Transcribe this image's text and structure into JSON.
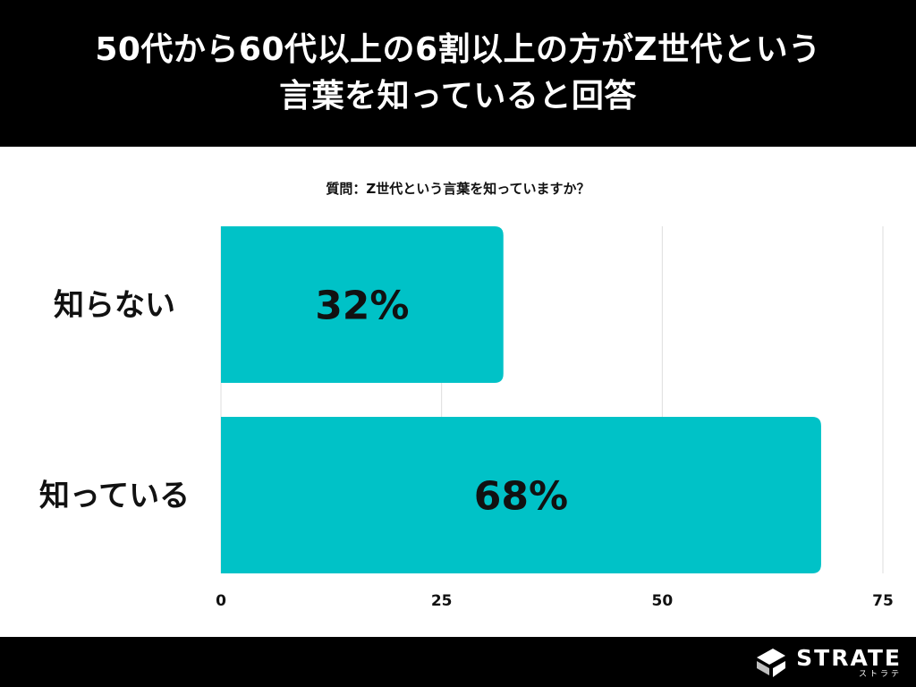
{
  "header": {
    "title_line1": "50代から60代以上の6割以上の方がZ世代という",
    "title_line2": "言葉を知っていると回答"
  },
  "question": "質問：Z世代という言葉を知っていますか？",
  "chart_data": {
    "type": "bar",
    "orientation": "horizontal",
    "categories": [
      "知らない",
      "知っている"
    ],
    "values": [
      32,
      68
    ],
    "value_labels": [
      "32%",
      "68%"
    ],
    "x_ticks": [
      "0",
      "25",
      "50",
      "75"
    ],
    "xlim": [
      0,
      75
    ],
    "grid": true,
    "bar_color": "#00C2C7"
  },
  "footer": {
    "logo_text": "STRATE",
    "logo_kana": "ストラテ"
  }
}
